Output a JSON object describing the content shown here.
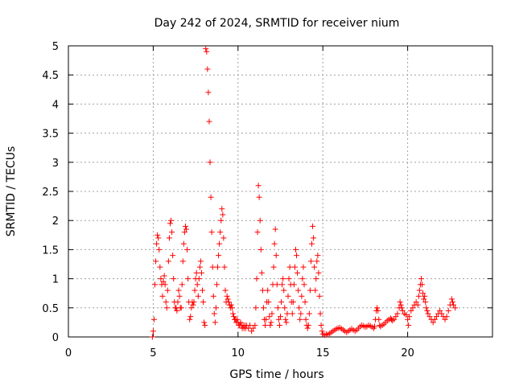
{
  "chart_data": {
    "type": "scatter",
    "title": "Day 242 of 2024, SRMTID for receiver nium",
    "xlabel": "GPS time / hours",
    "ylabel": "SRMTID / TECUs",
    "xlim": [
      0,
      25
    ],
    "ylim": [
      0,
      5
    ],
    "xticks": [
      0,
      5,
      10,
      15,
      20
    ],
    "yticks": [
      0,
      0.5,
      1,
      1.5,
      2,
      2.5,
      3,
      3.5,
      4,
      4.5,
      5
    ],
    "xtick_labels": [
      "0",
      "5",
      "10",
      "15",
      "20"
    ],
    "ytick_labels": [
      "0",
      "0.5",
      "1",
      "1.5",
      "2",
      "2.5",
      "3",
      "3.5",
      "4",
      "4.5",
      "5"
    ],
    "grid": true,
    "marker": "+",
    "color": "#ff0000",
    "series": [
      {
        "name": "SRMTID",
        "points": [
          [
            4.95,
            0.0
          ],
          [
            5.0,
            0.1
          ],
          [
            5.05,
            0.3
          ],
          [
            5.1,
            0.9
          ],
          [
            5.15,
            1.3
          ],
          [
            5.2,
            1.6
          ],
          [
            5.25,
            1.75
          ],
          [
            5.3,
            1.7
          ],
          [
            5.35,
            1.5
          ],
          [
            5.4,
            1.2
          ],
          [
            5.45,
            1.0
          ],
          [
            5.5,
            0.9
          ],
          [
            5.55,
            0.7
          ],
          [
            5.6,
            0.95
          ],
          [
            5.65,
            1.05
          ],
          [
            5.7,
            0.9
          ],
          [
            5.75,
            0.6
          ],
          [
            5.8,
            0.5
          ],
          [
            5.85,
            0.8
          ],
          [
            5.9,
            1.3
          ],
          [
            5.95,
            1.7
          ],
          [
            6.0,
            1.95
          ],
          [
            6.05,
            2.0
          ],
          [
            6.1,
            1.8
          ],
          [
            6.15,
            1.4
          ],
          [
            6.2,
            1.0
          ],
          [
            6.25,
            0.6
          ],
          [
            6.3,
            0.5
          ],
          [
            6.35,
            0.5
          ],
          [
            6.4,
            0.45
          ],
          [
            6.45,
            0.6
          ],
          [
            6.5,
            0.8
          ],
          [
            6.55,
            0.7
          ],
          [
            6.6,
            0.5
          ],
          [
            6.65,
            0.5
          ],
          [
            6.7,
            0.9
          ],
          [
            6.75,
            1.3
          ],
          [
            6.8,
            1.6
          ],
          [
            6.85,
            1.8
          ],
          [
            6.9,
            1.9
          ],
          [
            6.95,
            1.85
          ],
          [
            7.0,
            1.5
          ],
          [
            7.05,
            1.0
          ],
          [
            7.1,
            0.6
          ],
          [
            7.15,
            0.3
          ],
          [
            7.2,
            0.35
          ],
          [
            7.25,
            0.5
          ],
          [
            7.3,
            0.6
          ],
          [
            7.35,
            0.55
          ],
          [
            7.4,
            0.6
          ],
          [
            7.45,
            0.8
          ],
          [
            7.5,
            1.0
          ],
          [
            7.55,
            1.1
          ],
          [
            7.6,
            0.9
          ],
          [
            7.65,
            0.7
          ],
          [
            7.7,
            1.0
          ],
          [
            7.75,
            1.2
          ],
          [
            7.8,
            1.3
          ],
          [
            7.85,
            1.1
          ],
          [
            7.9,
            0.8
          ],
          [
            7.95,
            0.6
          ],
          [
            8.0,
            0.25
          ],
          [
            8.05,
            0.2
          ],
          [
            8.1,
            4.95
          ],
          [
            8.15,
            4.9
          ],
          [
            8.2,
            4.6
          ],
          [
            8.25,
            4.2
          ],
          [
            8.3,
            3.7
          ],
          [
            8.35,
            3.0
          ],
          [
            8.4,
            2.4
          ],
          [
            8.45,
            1.8
          ],
          [
            8.5,
            1.2
          ],
          [
            8.55,
            0.7
          ],
          [
            8.6,
            0.4
          ],
          [
            8.65,
            0.25
          ],
          [
            8.7,
            0.5
          ],
          [
            8.75,
            0.9
          ],
          [
            8.8,
            1.2
          ],
          [
            8.85,
            1.4
          ],
          [
            8.9,
            1.6
          ],
          [
            8.95,
            1.8
          ],
          [
            9.0,
            2.0
          ],
          [
            9.05,
            2.2
          ],
          [
            9.1,
            2.1
          ],
          [
            9.15,
            1.7
          ],
          [
            9.2,
            1.2
          ],
          [
            9.25,
            0.8
          ],
          [
            9.3,
            0.6
          ],
          [
            9.35,
            0.7
          ],
          [
            9.4,
            0.65
          ],
          [
            9.45,
            0.6
          ],
          [
            9.5,
            0.55
          ],
          [
            9.55,
            0.5
          ],
          [
            9.6,
            0.55
          ],
          [
            9.65,
            0.5
          ],
          [
            9.7,
            0.4
          ],
          [
            9.75,
            0.35
          ],
          [
            9.8,
            0.3
          ],
          [
            9.85,
            0.3
          ],
          [
            9.9,
            0.25
          ],
          [
            9.95,
            0.3
          ],
          [
            10.0,
            0.25
          ],
          [
            10.05,
            0.2
          ],
          [
            10.1,
            0.2
          ],
          [
            10.15,
            0.25
          ],
          [
            10.2,
            0.2
          ],
          [
            10.25,
            0.15
          ],
          [
            10.3,
            0.2
          ],
          [
            10.35,
            0.15
          ],
          [
            10.4,
            0.2
          ],
          [
            10.45,
            0.15
          ],
          [
            10.5,
            0.2
          ],
          [
            10.6,
            0.15
          ],
          [
            10.7,
            0.2
          ],
          [
            10.8,
            0.1
          ],
          [
            10.9,
            0.15
          ],
          [
            11.0,
            0.2
          ],
          [
            11.05,
            0.5
          ],
          [
            11.1,
            1.0
          ],
          [
            11.15,
            1.8
          ],
          [
            11.2,
            2.6
          ],
          [
            11.25,
            2.4
          ],
          [
            11.3,
            2.0
          ],
          [
            11.35,
            1.5
          ],
          [
            11.4,
            1.1
          ],
          [
            11.45,
            0.8
          ],
          [
            11.5,
            0.5
          ],
          [
            11.55,
            0.3
          ],
          [
            11.6,
            0.2
          ],
          [
            11.65,
            0.3
          ],
          [
            11.7,
            0.6
          ],
          [
            11.75,
            0.8
          ],
          [
            11.8,
            0.6
          ],
          [
            11.85,
            0.35
          ],
          [
            11.9,
            0.2
          ],
          [
            11.95,
            0.25
          ],
          [
            12.0,
            0.4
          ],
          [
            12.05,
            0.9
          ],
          [
            12.1,
            1.2
          ],
          [
            12.15,
            1.6
          ],
          [
            12.2,
            1.85
          ],
          [
            12.25,
            1.4
          ],
          [
            12.3,
            0.9
          ],
          [
            12.35,
            0.5
          ],
          [
            12.4,
            0.3
          ],
          [
            12.45,
            0.2
          ],
          [
            12.5,
            0.35
          ],
          [
            12.55,
            0.6
          ],
          [
            12.6,
            0.9
          ],
          [
            12.65,
            1.0
          ],
          [
            12.7,
            0.8
          ],
          [
            12.75,
            0.5
          ],
          [
            12.8,
            0.3
          ],
          [
            12.85,
            0.25
          ],
          [
            12.9,
            0.4
          ],
          [
            12.95,
            0.7
          ],
          [
            13.0,
            1.0
          ],
          [
            13.05,
            1.2
          ],
          [
            13.1,
            0.9
          ],
          [
            13.15,
            0.6
          ],
          [
            13.2,
            0.4
          ],
          [
            13.25,
            0.6
          ],
          [
            13.3,
            0.9
          ],
          [
            13.35,
            1.2
          ],
          [
            13.4,
            1.5
          ],
          [
            13.45,
            1.4
          ],
          [
            13.5,
            1.1
          ],
          [
            13.55,
            0.8
          ],
          [
            13.6,
            0.5
          ],
          [
            13.65,
            0.3
          ],
          [
            13.7,
            0.4
          ],
          [
            13.75,
            0.7
          ],
          [
            13.8,
            1.0
          ],
          [
            13.85,
            1.2
          ],
          [
            13.9,
            0.9
          ],
          [
            13.95,
            0.6
          ],
          [
            14.0,
            0.3
          ],
          [
            14.05,
            0.2
          ],
          [
            14.1,
            0.15
          ],
          [
            14.15,
            0.2
          ],
          [
            14.2,
            0.4
          ],
          [
            14.25,
            0.8
          ],
          [
            14.3,
            1.3
          ],
          [
            14.35,
            1.6
          ],
          [
            14.4,
            1.9
          ],
          [
            14.45,
            1.7
          ],
          [
            14.5,
            1.2
          ],
          [
            14.55,
            0.8
          ],
          [
            14.6,
            1.0
          ],
          [
            14.65,
            1.3
          ],
          [
            14.7,
            1.4
          ],
          [
            14.75,
            1.1
          ],
          [
            14.8,
            0.7
          ],
          [
            14.85,
            0.4
          ],
          [
            14.9,
            0.2
          ],
          [
            14.95,
            0.1
          ],
          [
            15.0,
            0.05
          ],
          [
            15.1,
            0.03
          ],
          [
            15.2,
            0.05
          ],
          [
            15.3,
            0.04
          ],
          [
            15.4,
            0.06
          ],
          [
            15.5,
            0.08
          ],
          [
            15.6,
            0.1
          ],
          [
            15.7,
            0.12
          ],
          [
            15.8,
            0.14
          ],
          [
            15.9,
            0.15
          ],
          [
            16.0,
            0.16
          ],
          [
            16.1,
            0.14
          ],
          [
            16.2,
            0.12
          ],
          [
            16.3,
            0.1
          ],
          [
            16.4,
            0.08
          ],
          [
            16.5,
            0.1
          ],
          [
            16.6,
            0.12
          ],
          [
            16.7,
            0.14
          ],
          [
            16.8,
            0.12
          ],
          [
            16.9,
            0.1
          ],
          [
            17.0,
            0.12
          ],
          [
            17.1,
            0.15
          ],
          [
            17.2,
            0.18
          ],
          [
            17.3,
            0.2
          ],
          [
            17.4,
            0.19
          ],
          [
            17.5,
            0.17
          ],
          [
            17.6,
            0.18
          ],
          [
            17.7,
            0.2
          ],
          [
            17.8,
            0.19
          ],
          [
            17.9,
            0.17
          ],
          [
            18.0,
            0.15
          ],
          [
            18.05,
            0.18
          ],
          [
            18.1,
            0.3
          ],
          [
            18.15,
            0.45
          ],
          [
            18.2,
            0.5
          ],
          [
            18.25,
            0.45
          ],
          [
            18.3,
            0.3
          ],
          [
            18.35,
            0.2
          ],
          [
            18.4,
            0.18
          ],
          [
            18.5,
            0.2
          ],
          [
            18.6,
            0.22
          ],
          [
            18.7,
            0.25
          ],
          [
            18.8,
            0.28
          ],
          [
            18.9,
            0.3
          ],
          [
            19.0,
            0.32
          ],
          [
            19.05,
            0.3
          ],
          [
            19.1,
            0.28
          ],
          [
            19.2,
            0.3
          ],
          [
            19.3,
            0.35
          ],
          [
            19.4,
            0.4
          ],
          [
            19.5,
            0.5
          ],
          [
            19.55,
            0.6
          ],
          [
            19.6,
            0.55
          ],
          [
            19.65,
            0.5
          ],
          [
            19.7,
            0.45
          ],
          [
            19.8,
            0.4
          ],
          [
            19.9,
            0.38
          ],
          [
            20.0,
            0.3
          ],
          [
            20.05,
            0.2
          ],
          [
            20.1,
            0.35
          ],
          [
            20.2,
            0.45
          ],
          [
            20.3,
            0.5
          ],
          [
            20.4,
            0.55
          ],
          [
            20.5,
            0.6
          ],
          [
            20.6,
            0.55
          ],
          [
            20.65,
            0.7
          ],
          [
            20.7,
            0.8
          ],
          [
            20.75,
            0.9
          ],
          [
            20.8,
            1.0
          ],
          [
            20.85,
            0.9
          ],
          [
            20.9,
            0.75
          ],
          [
            20.95,
            0.65
          ],
          [
            21.0,
            0.7
          ],
          [
            21.05,
            0.6
          ],
          [
            21.1,
            0.5
          ],
          [
            21.15,
            0.45
          ],
          [
            21.2,
            0.4
          ],
          [
            21.3,
            0.35
          ],
          [
            21.4,
            0.3
          ],
          [
            21.5,
            0.25
          ],
          [
            21.6,
            0.3
          ],
          [
            21.7,
            0.35
          ],
          [
            21.8,
            0.4
          ],
          [
            21.9,
            0.45
          ],
          [
            22.0,
            0.4
          ],
          [
            22.1,
            0.35
          ],
          [
            22.2,
            0.3
          ],
          [
            22.3,
            0.35
          ],
          [
            22.4,
            0.45
          ],
          [
            22.5,
            0.55
          ],
          [
            22.6,
            0.65
          ],
          [
            22.65,
            0.6
          ],
          [
            22.7,
            0.55
          ],
          [
            22.8,
            0.5
          ]
        ]
      }
    ]
  }
}
